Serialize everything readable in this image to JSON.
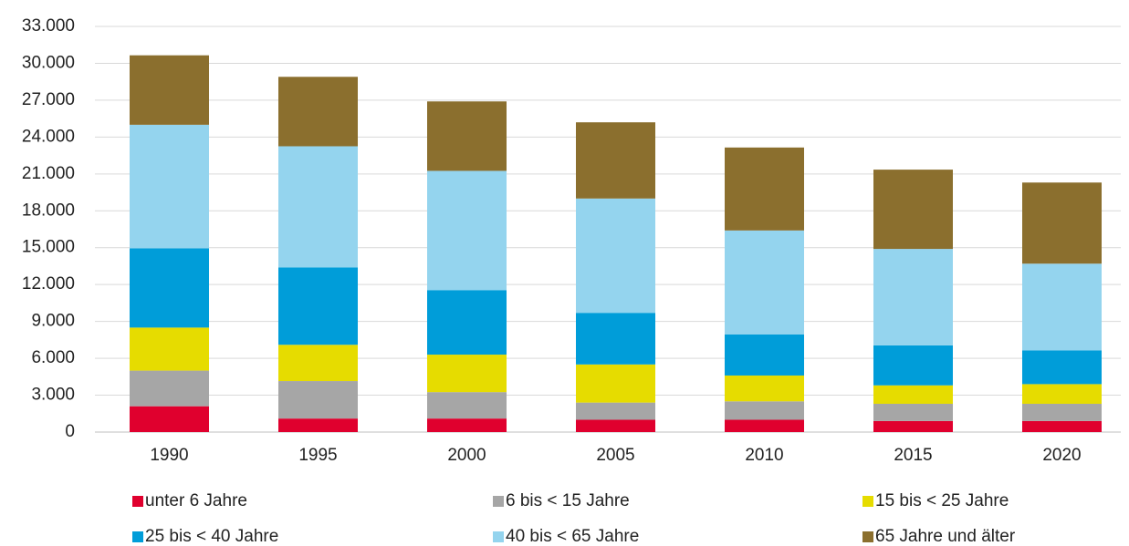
{
  "chart_data": {
    "type": "stacked_bar",
    "categories": [
      "1990",
      "1995",
      "2000",
      "2005",
      "2010",
      "2015",
      "2020"
    ],
    "series": [
      {
        "name": "unter 6 Jahre",
        "color": "#e0002e",
        "values": [
          2100,
          1100,
          1100,
          1000,
          1000,
          900,
          900
        ]
      },
      {
        "name": "6 bis < 15 Jahre",
        "color": "#a6a6a6",
        "values": [
          2900,
          3050,
          2150,
          1400,
          1500,
          1400,
          1400
        ]
      },
      {
        "name": "15 bis < 25 Jahre",
        "color": "#e6dc00",
        "values": [
          3500,
          2950,
          3050,
          3100,
          2100,
          1500,
          1600
        ]
      },
      {
        "name": "25 bis < 40 Jahre",
        "color": "#009dd9",
        "values": [
          6450,
          6300,
          5250,
          4200,
          3350,
          3250,
          2750
        ]
      },
      {
        "name": "40 bis < 65 Jahre",
        "color": "#94d4ee",
        "values": [
          10050,
          9850,
          9700,
          9300,
          8450,
          7850,
          7050
        ]
      },
      {
        "name": "65 Jahre und älter",
        "color": "#8b6f2e",
        "values": [
          5650,
          5650,
          5650,
          6200,
          6750,
          6450,
          6600
        ]
      }
    ],
    "ylim": [
      0,
      33000
    ],
    "yticks": [
      0,
      {
        "value": 3000,
        "label": "3.000"
      },
      {
        "value": 6000,
        "label": "6.000"
      },
      {
        "value": 9000,
        "label": "9.000"
      },
      {
        "value": 12000,
        "label": "12.000"
      },
      {
        "value": 15000,
        "label": "15.000"
      },
      {
        "value": 18000,
        "label": "18.000"
      },
      {
        "value": 21000,
        "label": "21.000"
      },
      {
        "value": 24000,
        "label": "24.000"
      },
      {
        "value": 27000,
        "label": "27.000"
      },
      {
        "value": 30000,
        "label": "30.000"
      },
      {
        "value": 33000,
        "label": "33.000"
      }
    ],
    "grid": true,
    "legend": "bottom"
  }
}
